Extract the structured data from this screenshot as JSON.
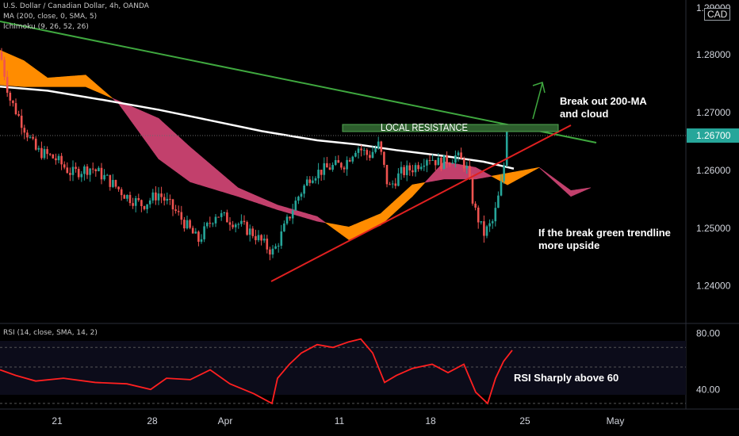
{
  "legend": {
    "symbol": "U.S. Dollar / Canadian Dollar, 4h, OANDA",
    "ma": "MA (200, close, 0, SMA, 5)",
    "ichimoku": "Ichimoku (9, 26, 52, 26)",
    "rsi": "RSI (14, close, SMA, 14, 2)"
  },
  "currency_badge": "CAD",
  "colors": {
    "background": "#000000",
    "up_candle": "#26a69a",
    "down_candle": "#ef5350",
    "cloud_bull": "#ff8c00",
    "cloud_bear": "#c2406d",
    "ma_line": "#ffffff",
    "trend_down": "#3fa83f",
    "trend_up": "#e02020",
    "resistance": "#3fa83f",
    "rsi_line": "#ff2020",
    "price_tag": "#26a69a"
  },
  "chart_data": {
    "type": "candlestick",
    "title": "U.S. Dollar / Canadian Dollar, 4h, OANDA",
    "x_tick_labels": [
      "21",
      "28",
      "Apr",
      "11",
      "18",
      "25",
      "May"
    ],
    "price_axis": {
      "range": [
        1.2335,
        1.2895
      ],
      "ticks": [
        "1.28000",
        "1.27000",
        "1.26000",
        "1.25000",
        "1.24000"
      ],
      "top_partial_label": "1.29000",
      "current_price_label": "1.26700",
      "current_price": 1.267
    },
    "candle_path": [
      [
        0,
        1.2805
      ],
      [
        12,
        1.2725
      ],
      [
        45,
        1.2635
      ],
      [
        70,
        1.262
      ],
      [
        90,
        1.2595
      ],
      [
        115,
        1.2605
      ],
      [
        135,
        1.2585
      ],
      [
        160,
        1.2555
      ],
      [
        180,
        1.254
      ],
      [
        200,
        1.256
      ],
      [
        222,
        1.2528
      ],
      [
        250,
        1.2478
      ],
      [
        272,
        1.2525
      ],
      [
        300,
        1.2508
      ],
      [
        320,
        1.249
      ],
      [
        338,
        1.2465
      ],
      [
        345,
        1.2458
      ],
      [
        360,
        1.2505
      ],
      [
        375,
        1.2552
      ],
      [
        392,
        1.2592
      ],
      [
        415,
        1.2605
      ],
      [
        435,
        1.2612
      ],
      [
        450,
        1.2642
      ],
      [
        465,
        1.2625
      ],
      [
        478,
        1.2645
      ],
      [
        490,
        1.2568
      ],
      [
        505,
        1.2595
      ],
      [
        522,
        1.2605
      ],
      [
        540,
        1.2625
      ],
      [
        555,
        1.2612
      ],
      [
        575,
        1.2625
      ],
      [
        588,
        1.2608
      ],
      [
        598,
        1.2535
      ],
      [
        610,
        1.249
      ],
      [
        622,
        1.2512
      ],
      [
        632,
        1.2575
      ],
      [
        642,
        1.267
      ]
    ],
    "ma200_path": [
      [
        0,
        1.2745
      ],
      [
        60,
        1.2738
      ],
      [
        130,
        1.2722
      ],
      [
        200,
        1.2705
      ],
      [
        260,
        1.2688
      ],
      [
        330,
        1.2668
      ],
      [
        400,
        1.2652
      ],
      [
        450,
        1.2645
      ],
      [
        500,
        1.2635
      ],
      [
        560,
        1.2625
      ],
      [
        610,
        1.2615
      ],
      [
        648,
        1.2603
      ]
    ],
    "ichimoku_cloud": {
      "span_a": [
        [
          0,
          1.2808
        ],
        [
          30,
          1.279
        ],
        [
          60,
          1.276
        ],
        [
          108,
          1.2765
        ],
        [
          150,
          1.2715
        ],
        [
          200,
          1.262
        ],
        [
          240,
          1.258
        ],
        [
          300,
          1.2555
        ],
        [
          350,
          1.2532
        ],
        [
          400,
          1.2512
        ],
        [
          440,
          1.2502
        ],
        [
          480,
          1.2525
        ],
        [
          520,
          1.2575
        ],
        [
          560,
          1.2585
        ],
        [
          600,
          1.2585
        ],
        [
          640,
          1.2595
        ],
        [
          680,
          1.2605
        ],
        [
          700,
          1.258
        ],
        [
          720,
          1.2555
        ],
        [
          745,
          1.257
        ]
      ],
      "span_b": [
        [
          0,
          1.2748
        ],
        [
          30,
          1.2745
        ],
        [
          60,
          1.2745
        ],
        [
          108,
          1.2745
        ],
        [
          150,
          1.272
        ],
        [
          200,
          1.269
        ],
        [
          240,
          1.264
        ],
        [
          300,
          1.257
        ],
        [
          350,
          1.254
        ],
        [
          400,
          1.252
        ],
        [
          440,
          1.248
        ],
        [
          480,
          1.2505
        ],
        [
          520,
          1.2555
        ],
        [
          560,
          1.2615
        ],
        [
          600,
          1.2605
        ],
        [
          640,
          1.2575
        ],
        [
          680,
          1.2605
        ],
        [
          700,
          1.2585
        ],
        [
          720,
          1.2565
        ],
        [
          745,
          1.257
        ]
      ]
    },
    "rsi": {
      "label": "RSI (14, close, SMA, 14, 2)",
      "range": [
        26,
        86
      ],
      "ticks": [
        "80.00",
        "40.00"
      ],
      "levels": [
        70,
        56,
        30
      ],
      "path": [
        [
          0,
          54
        ],
        [
          20,
          50
        ],
        [
          45,
          46
        ],
        [
          80,
          48
        ],
        [
          120,
          45
        ],
        [
          160,
          44
        ],
        [
          190,
          40
        ],
        [
          210,
          48
        ],
        [
          240,
          47
        ],
        [
          265,
          54
        ],
        [
          290,
          44
        ],
        [
          320,
          37
        ],
        [
          343,
          30
        ],
        [
          350,
          48
        ],
        [
          365,
          58
        ],
        [
          380,
          66
        ],
        [
          400,
          72
        ],
        [
          420,
          70
        ],
        [
          440,
          74
        ],
        [
          455,
          76
        ],
        [
          470,
          66
        ],
        [
          485,
          45
        ],
        [
          500,
          50
        ],
        [
          520,
          55
        ],
        [
          545,
          58
        ],
        [
          565,
          52
        ],
        [
          585,
          58
        ],
        [
          600,
          38
        ],
        [
          615,
          30
        ],
        [
          625,
          48
        ],
        [
          635,
          60
        ],
        [
          646,
          68
        ]
      ]
    },
    "annotations": {
      "break_out": [
        "Break out 200-MA",
        "and cloud"
      ],
      "trendline_note": [
        "If the break green trendline",
        "more upside"
      ],
      "local_resistance": "LOCAL RESISTANCE",
      "rsi_note": "RSI Sharply above 60"
    }
  }
}
